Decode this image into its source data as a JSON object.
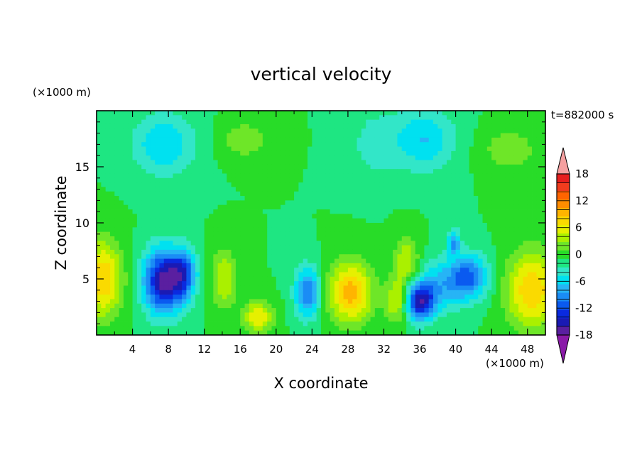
{
  "chart_data": {
    "type": "heatmap",
    "title": "vertical velocity",
    "xlabel": "X coordinate",
    "ylabel": "Z coordinate",
    "x_unit": "(×1000 m)",
    "y_unit": "(×1000 m)",
    "time_label": "t=882000 s",
    "xlim": [
      0,
      50
    ],
    "ylim": [
      0,
      20
    ],
    "x_ticks": [
      4,
      8,
      12,
      16,
      20,
      24,
      28,
      32,
      36,
      40,
      44,
      48
    ],
    "y_ticks": [
      5,
      10,
      15
    ],
    "colorbar": {
      "levels": [
        -20,
        -18,
        -16,
        -14,
        -12,
        -10,
        -8,
        -6,
        -4,
        -2,
        0,
        2,
        4,
        6,
        8,
        10,
        12,
        14,
        16,
        18,
        20
      ],
      "tick_labels": [
        "18",
        "12",
        "6",
        "0",
        "-6",
        "-12",
        "-18"
      ],
      "tick_values": [
        18,
        12,
        6,
        0,
        -6,
        -12,
        -18
      ],
      "colors": [
        "#8a1aa8",
        "#5a1fa0",
        "#1a1ab4",
        "#0a2ae0",
        "#0a5af0",
        "#1a8cf5",
        "#27b4f5",
        "#00e1f0",
        "#32e6c8",
        "#1ee682",
        "#28dc28",
        "#6ee628",
        "#aaf000",
        "#e6f000",
        "#fada00",
        "#ffb400",
        "#ff8c00",
        "#ff6400",
        "#f03c1e",
        "#e61e1e",
        "#f5a0a0"
      ],
      "over_color": "#f5a0a0",
      "under_color": "#8a1aa8"
    },
    "features": [
      {
        "x": 0.6,
        "z": 5.0,
        "w": 10.0,
        "sx": 1.6,
        "sz": 2.4
      },
      {
        "x": 7.5,
        "z": 4.8,
        "w": -17.0,
        "sx": 1.6,
        "sz": 2.0
      },
      {
        "x": 9.8,
        "z": 5.5,
        "w": -9.0,
        "sx": 1.0,
        "sz": 1.5
      },
      {
        "x": 14.2,
        "z": 5.0,
        "w": 6.0,
        "sx": 1.0,
        "sz": 1.8
      },
      {
        "x": 18.0,
        "z": 1.6,
        "w": 8.0,
        "sx": 1.2,
        "sz": 1.0
      },
      {
        "x": 23.5,
        "z": 3.8,
        "w": -10.0,
        "sx": 1.0,
        "sz": 1.6
      },
      {
        "x": 28.3,
        "z": 3.8,
        "w": 11.0,
        "sx": 1.7,
        "sz": 1.9
      },
      {
        "x": 33.5,
        "z": 3.0,
        "w": 7.0,
        "sx": 0.9,
        "sz": 1.3
      },
      {
        "x": 34.5,
        "z": 6.5,
        "w": 6.0,
        "sx": 1.0,
        "sz": 1.6
      },
      {
        "x": 36.0,
        "z": 3.0,
        "w": -15.0,
        "sx": 1.2,
        "sz": 1.2
      },
      {
        "x": 38.5,
        "z": 4.5,
        "w": -6.0,
        "sx": 1.8,
        "sz": 1.6
      },
      {
        "x": 41.5,
        "z": 5.2,
        "w": -10.0,
        "sx": 1.5,
        "sz": 1.4
      },
      {
        "x": 39.8,
        "z": 8.3,
        "w": -8.0,
        "sx": 0.5,
        "sz": 0.8
      },
      {
        "x": 48.5,
        "z": 4.0,
        "w": 10.0,
        "sx": 2.0,
        "sz": 2.4
      },
      {
        "x": 7.5,
        "z": 17.0,
        "w": -6.0,
        "sx": 2.5,
        "sz": 2.0
      },
      {
        "x": 16.5,
        "z": 17.4,
        "w": 3.5,
        "sx": 2.0,
        "sz": 1.2
      },
      {
        "x": 36.5,
        "z": 17.5,
        "w": -6.0,
        "sx": 2.4,
        "sz": 2.0
      },
      {
        "x": 46.0,
        "z": 16.5,
        "w": 3.5,
        "sx": 2.2,
        "sz": 1.4
      },
      {
        "x": 31.0,
        "z": 17.0,
        "w": -3.0,
        "sx": 2.0,
        "sz": 2.2
      }
    ]
  }
}
